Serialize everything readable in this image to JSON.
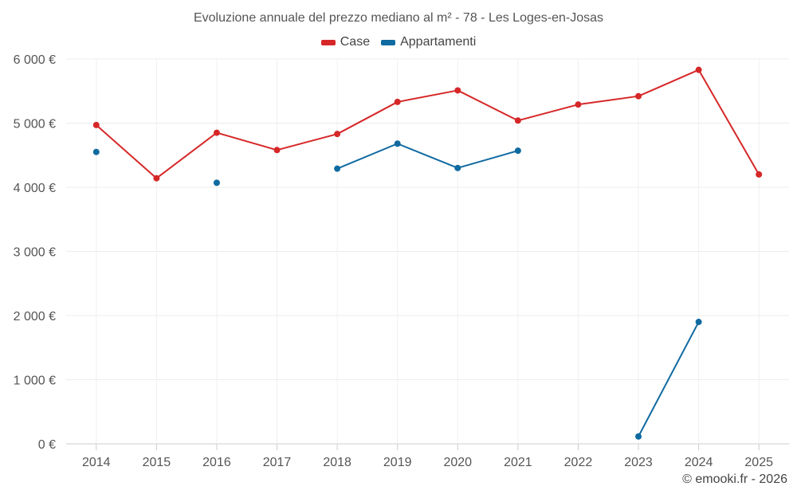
{
  "chart_data": {
    "type": "line",
    "title": "Evoluzione annuale del prezzo mediano al m² - 78 - Les Loges-en-Josas",
    "xlabel": "",
    "ylabel": "",
    "categories": [
      "2014",
      "2015",
      "2016",
      "2017",
      "2018",
      "2019",
      "2020",
      "2021",
      "2022",
      "2023",
      "2024",
      "2025"
    ],
    "ylim": [
      0,
      6000
    ],
    "yticks": [
      0,
      1000,
      2000,
      3000,
      4000,
      5000,
      6000
    ],
    "ytick_labels": [
      "0 €",
      "1 000 €",
      "2 000 €",
      "3 000 €",
      "4 000 €",
      "5 000 €",
      "6 000 €"
    ],
    "grid": true,
    "legend_position": "top-center",
    "series": [
      {
        "name": "Case",
        "color": "#d62728",
        "values": [
          4970,
          4140,
          4850,
          4580,
          4830,
          5330,
          5510,
          5040,
          5290,
          5420,
          5830,
          4200
        ]
      },
      {
        "name": "Appartamenti",
        "color": "#0f6aa0",
        "values": [
          4550,
          null,
          4070,
          null,
          4290,
          4680,
          4300,
          4570,
          null,
          115,
          1900,
          null
        ]
      }
    ]
  },
  "credit": "© emooki.fr - 2026"
}
